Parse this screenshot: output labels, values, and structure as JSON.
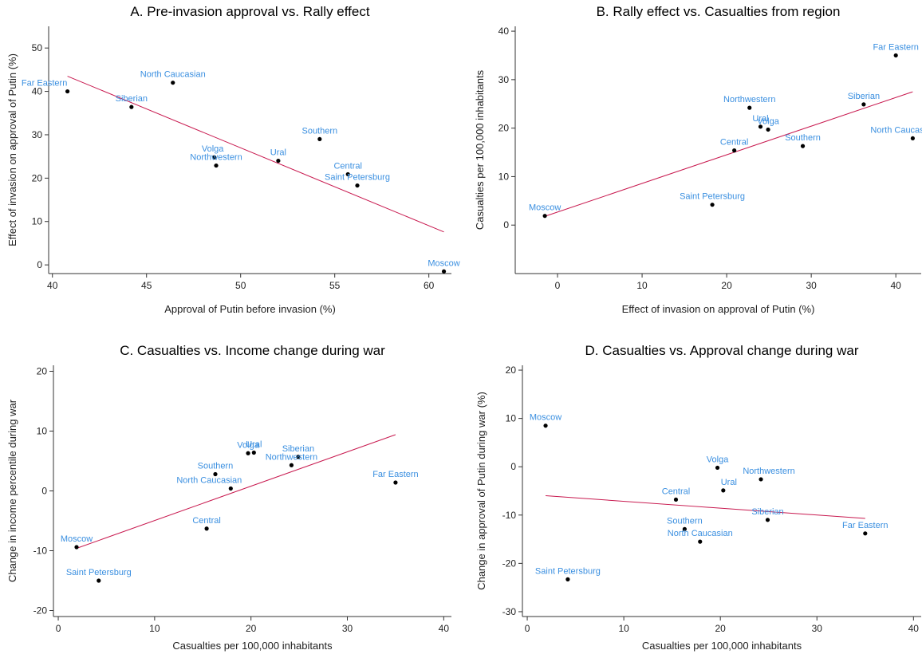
{
  "chart_data": [
    {
      "type": "scatter",
      "title": "A. Pre-invasion approval vs. Rally effect",
      "xlabel": "Approval of Putin before invasion (%)",
      "ylabel": "Effect of invasion on approval of Putin (%)",
      "xlim": [
        39.8,
        61.2
      ],
      "ylim": [
        -2,
        55
      ],
      "xticks": [
        40,
        45,
        50,
        55,
        60
      ],
      "yticks": [
        0,
        10,
        20,
        30,
        40,
        50
      ],
      "points": [
        {
          "label": "Far Eastern",
          "x": 40.8,
          "y": 40.0
        },
        {
          "label": "North Caucasian",
          "x": 46.4,
          "y": 42.0
        },
        {
          "label": "Siberian",
          "x": 44.2,
          "y": 36.4
        },
        {
          "label": "Southern",
          "x": 54.2,
          "y": 29.0
        },
        {
          "label": "Volga",
          "x": 48.6,
          "y": 24.8
        },
        {
          "label": "Northwestern",
          "x": 48.7,
          "y": 22.9
        },
        {
          "label": "Ural",
          "x": 52.0,
          "y": 24.0
        },
        {
          "label": "Central",
          "x": 55.7,
          "y": 20.9
        },
        {
          "label": "Saint Petersburg",
          "x": 56.2,
          "y": 18.3
        },
        {
          "label": "Moscow",
          "x": 60.8,
          "y": -1.5
        }
      ],
      "fit": {
        "x": [
          40.8,
          60.8
        ],
        "y": [
          43.5,
          7.6
        ]
      }
    },
    {
      "type": "scatter",
      "title": "B. Rally effect vs. Casualties from region",
      "xlabel": "Effect of invasion on approval of Putin (%)",
      "ylabel": "Casualties per 100,000 inhabitants",
      "xlim": [
        -5,
        43
      ],
      "ylim": [
        -10,
        41
      ],
      "xticks": [
        0,
        10,
        20,
        30,
        40
      ],
      "yticks": [
        0,
        10,
        20,
        30,
        40
      ],
      "points": [
        {
          "label": "Far Eastern",
          "x": 40.0,
          "y": 35.0
        },
        {
          "label": "Siberian",
          "x": 36.2,
          "y": 24.9
        },
        {
          "label": "Northwestern",
          "x": 22.7,
          "y": 24.2
        },
        {
          "label": "Ural",
          "x": 24.0,
          "y": 20.3
        },
        {
          "label": "Volga",
          "x": 24.9,
          "y": 19.7
        },
        {
          "label": "North Caucasian",
          "x": 42.0,
          "y": 17.9
        },
        {
          "label": "Southern",
          "x": 29.0,
          "y": 16.3
        },
        {
          "label": "Central",
          "x": 20.9,
          "y": 15.4
        },
        {
          "label": "Saint Petersburg",
          "x": 18.3,
          "y": 4.2
        },
        {
          "label": "Moscow",
          "x": -1.5,
          "y": 1.9
        }
      ],
      "fit": {
        "x": [
          -1.5,
          42.0
        ],
        "y": [
          1.8,
          27.5
        ]
      }
    },
    {
      "type": "scatter",
      "title": "C. Casualties vs. Income change during war",
      "xlabel": "Casualties per 100,000 inhabitants",
      "ylabel": "Change in income percentile during war",
      "xlim": [
        -0.5,
        40.8
      ],
      "ylim": [
        -21,
        21
      ],
      "xticks": [
        0,
        10,
        20,
        30,
        40
      ],
      "yticks": [
        -20,
        -10,
        0,
        10,
        20
      ],
      "points": [
        {
          "label": "Volga",
          "x": 19.7,
          "y": 6.3
        },
        {
          "label": "Ural",
          "x": 20.3,
          "y": 6.4
        },
        {
          "label": "Siberian",
          "x": 24.9,
          "y": 5.7
        },
        {
          "label": "Northwestern",
          "x": 24.2,
          "y": 4.3
        },
        {
          "label": "Southern",
          "x": 16.3,
          "y": 2.8
        },
        {
          "label": "North Caucasian",
          "x": 17.9,
          "y": 0.4
        },
        {
          "label": "Far Eastern",
          "x": 35.0,
          "y": 1.4
        },
        {
          "label": "Central",
          "x": 15.4,
          "y": -6.3
        },
        {
          "label": "Moscow",
          "x": 1.9,
          "y": -9.4
        },
        {
          "label": "Saint Petersburg",
          "x": 4.2,
          "y": -15.0
        }
      ],
      "fit": {
        "x": [
          1.9,
          35.0
        ],
        "y": [
          -9.6,
          9.4
        ]
      }
    },
    {
      "type": "scatter",
      "title": "D. Casualties vs. Approval change during war",
      "xlabel": "Casualties per 100,000 inhabitants",
      "ylabel": "Change in approval of Putin during war (%)",
      "xlim": [
        -0.5,
        40.8
      ],
      "ylim": [
        -31,
        21
      ],
      "xticks": [
        0,
        10,
        20,
        30,
        40
      ],
      "yticks": [
        -30,
        -20,
        -10,
        0,
        10,
        20
      ],
      "points": [
        {
          "label": "Moscow",
          "x": 1.9,
          "y": 8.5
        },
        {
          "label": "Volga",
          "x": 19.7,
          "y": -0.2
        },
        {
          "label": "Northwestern",
          "x": 24.2,
          "y": -2.6
        },
        {
          "label": "Ural",
          "x": 20.3,
          "y": -4.9
        },
        {
          "label": "Central",
          "x": 15.4,
          "y": -6.8
        },
        {
          "label": "Siberian",
          "x": 24.9,
          "y": -11.0
        },
        {
          "label": "Southern",
          "x": 16.3,
          "y": -12.9
        },
        {
          "label": "North Caucasian",
          "x": 17.9,
          "y": -15.5
        },
        {
          "label": "Far Eastern",
          "x": 35.0,
          "y": -13.8
        },
        {
          "label": "Saint Petersburg",
          "x": 4.2,
          "y": -23.3
        }
      ],
      "fit": {
        "x": [
          1.9,
          35.0
        ],
        "y": [
          -6.0,
          -10.7
        ]
      }
    }
  ],
  "colors": {
    "point": "#000000",
    "label": "#3a8fe0",
    "fit_line": "#c8194f",
    "axis": "#333333"
  }
}
